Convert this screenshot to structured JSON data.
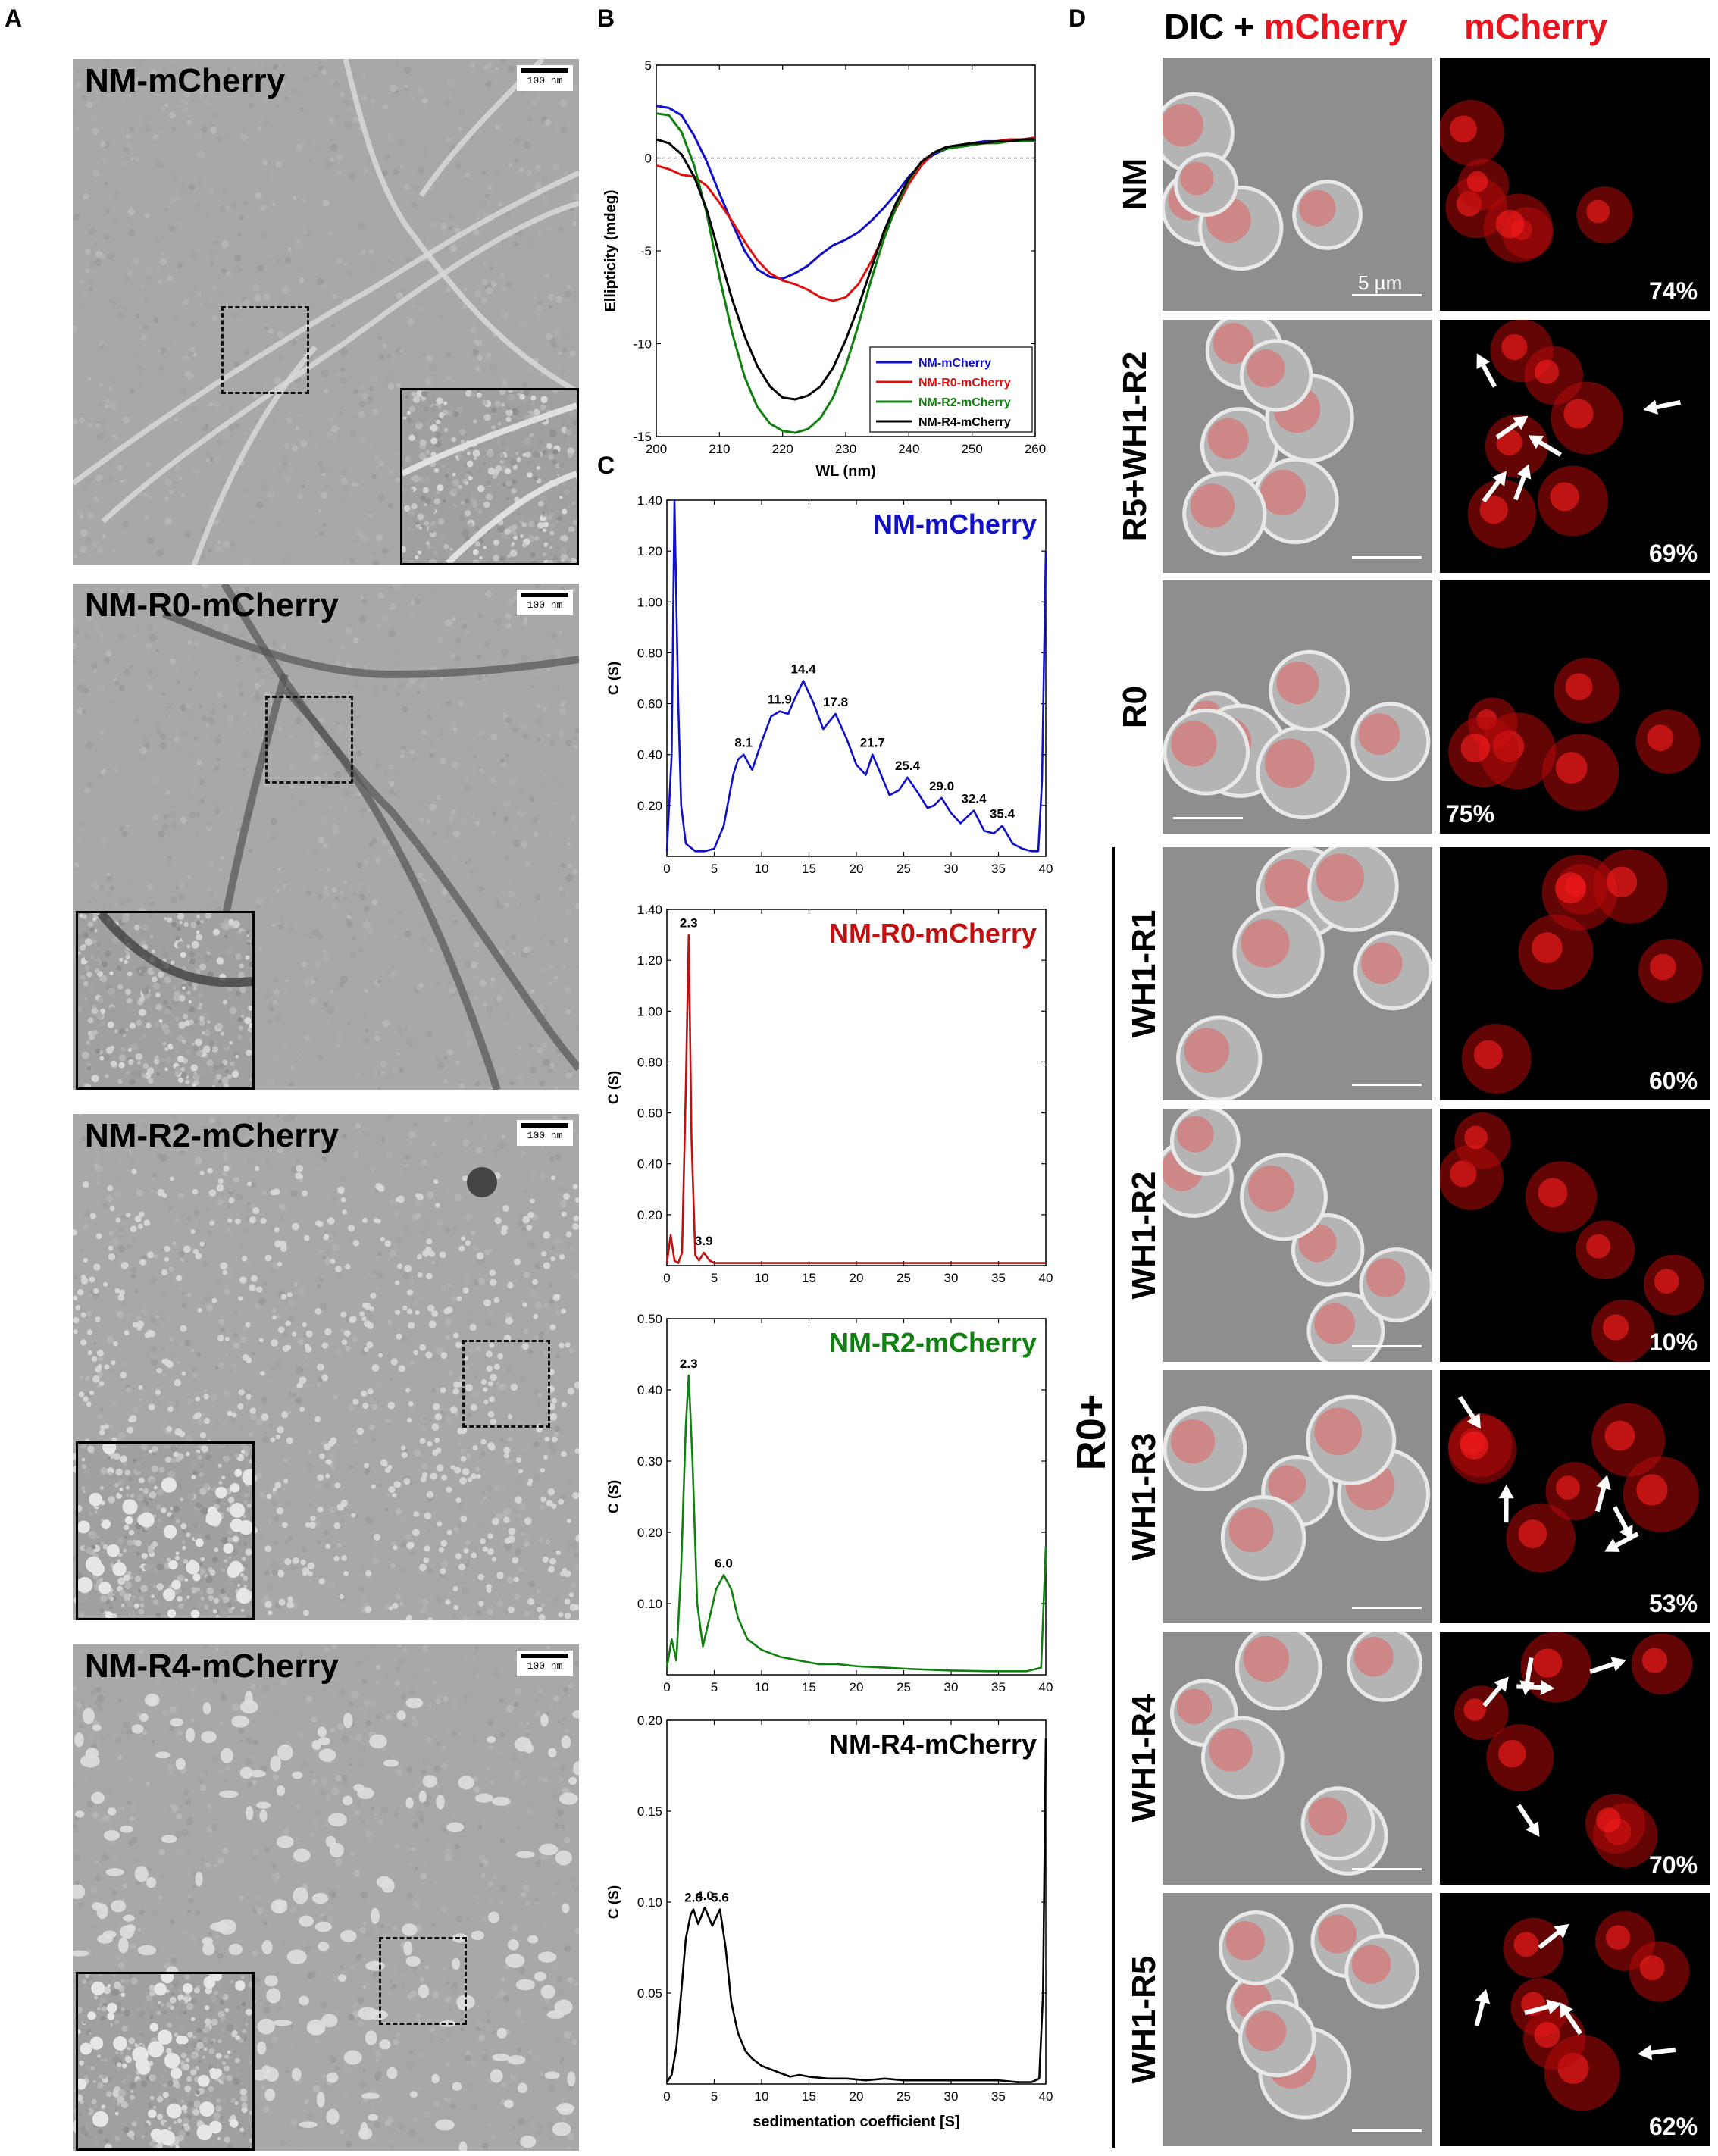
{
  "panels": {
    "a": {
      "letter": "A"
    },
    "b": {
      "letter": "B"
    },
    "c": {
      "letter": "C"
    },
    "d": {
      "letter": "D"
    }
  },
  "em": [
    {
      "title": "NM-mCherry",
      "scalebar": "100 nm",
      "style": "fibrils"
    },
    {
      "title": "NM-R0-mCherry",
      "scalebar": "100 nm",
      "style": "bundles"
    },
    {
      "title": "NM-R2-mCherry",
      "scalebar": "100 nm",
      "style": "dots"
    },
    {
      "title": "NM-R4-mCherry",
      "scalebar": "100 nm",
      "style": "blobs"
    }
  ],
  "chart_data": [
    {
      "type": "line",
      "panel": "B",
      "xlabel": "WL (nm)",
      "ylabel": "Ellipticity (mdeg)",
      "xlim": [
        200,
        260
      ],
      "ylim": [
        -15,
        5
      ],
      "xticks": [
        200,
        210,
        220,
        230,
        240,
        250,
        260
      ],
      "yticks": [
        5,
        0,
        -5,
        -10,
        -15
      ],
      "legend_position": "bottom-right",
      "series": [
        {
          "name": "NM-mCherry",
          "color": "#1010c8",
          "x": [
            200,
            202,
            204,
            206,
            208,
            210,
            212,
            214,
            216,
            218,
            220,
            222,
            224,
            226,
            228,
            230,
            232,
            234,
            236,
            238,
            240,
            242,
            244,
            246,
            248,
            250,
            252,
            254,
            256,
            258,
            260
          ],
          "y": [
            2.8,
            2.7,
            2.3,
            1.2,
            -0.2,
            -1.9,
            -3.5,
            -5.0,
            -6.0,
            -6.4,
            -6.5,
            -6.2,
            -5.8,
            -5.2,
            -4.7,
            -4.4,
            -4.0,
            -3.4,
            -2.7,
            -1.9,
            -1.0,
            -0.3,
            0.2,
            0.5,
            0.7,
            0.8,
            0.9,
            0.9,
            1.0,
            1.0,
            1.0
          ]
        },
        {
          "name": "NM-R0-mCherry",
          "color": "#e01010",
          "x": [
            200,
            202,
            204,
            206,
            208,
            210,
            212,
            214,
            216,
            218,
            220,
            222,
            224,
            226,
            228,
            230,
            232,
            234,
            236,
            238,
            240,
            242,
            244,
            246,
            248,
            250,
            252,
            254,
            256,
            258,
            260
          ],
          "y": [
            -0.4,
            -0.6,
            -0.9,
            -1.0,
            -1.5,
            -2.4,
            -3.4,
            -4.5,
            -5.5,
            -6.2,
            -6.6,
            -6.8,
            -7.1,
            -7.5,
            -7.7,
            -7.5,
            -6.8,
            -5.6,
            -4.2,
            -2.7,
            -1.4,
            -0.4,
            0.3,
            0.6,
            0.7,
            0.8,
            0.8,
            0.9,
            1.0,
            1.0,
            1.1
          ]
        },
        {
          "name": "NM-R2-mCherry",
          "color": "#108010",
          "x": [
            200,
            202,
            204,
            206,
            208,
            210,
            212,
            214,
            216,
            218,
            220,
            222,
            224,
            226,
            228,
            230,
            232,
            234,
            236,
            238,
            240,
            242,
            244,
            246,
            248,
            250,
            252,
            254,
            256,
            258,
            260
          ],
          "y": [
            2.4,
            2.3,
            1.4,
            -0.4,
            -3.0,
            -6.4,
            -9.4,
            -11.8,
            -13.4,
            -14.3,
            -14.7,
            -14.8,
            -14.6,
            -14.0,
            -12.9,
            -11.2,
            -9.0,
            -6.6,
            -4.4,
            -2.6,
            -1.2,
            -0.2,
            0.3,
            0.5,
            0.6,
            0.7,
            0.8,
            0.8,
            0.9,
            0.9,
            0.9
          ]
        },
        {
          "name": "NM-R4-mCherry",
          "color": "#000000",
          "x": [
            200,
            202,
            204,
            206,
            208,
            210,
            212,
            214,
            216,
            218,
            220,
            222,
            224,
            226,
            228,
            230,
            232,
            234,
            236,
            238,
            240,
            242,
            244,
            246,
            248,
            250,
            252,
            254,
            256,
            258,
            260
          ],
          "y": [
            1.0,
            0.8,
            0.2,
            -1.0,
            -2.8,
            -5.2,
            -7.6,
            -9.6,
            -11.2,
            -12.3,
            -12.9,
            -13.0,
            -12.8,
            -12.3,
            -11.3,
            -9.8,
            -8.0,
            -6.0,
            -4.0,
            -2.4,
            -1.1,
            -0.2,
            0.3,
            0.6,
            0.7,
            0.8,
            0.8,
            0.9,
            0.9,
            1.0,
            1.0
          ]
        }
      ]
    },
    {
      "type": "line",
      "panel": "C",
      "title": "NM-mCherry",
      "color": "#1010c8",
      "ylabel": "C (S)",
      "xlim": [
        0,
        40
      ],
      "ylim": [
        0,
        1.4
      ],
      "yticks": [
        0.2,
        0.4,
        0.6,
        0.8,
        1.0,
        1.2,
        1.4
      ],
      "ytick_labels": [
        "0.20",
        "0.40",
        "0.60",
        "0.80",
        "1.00",
        "1.20",
        "1.40"
      ],
      "xticks": [
        0,
        5,
        10,
        15,
        20,
        25,
        30,
        35,
        40
      ],
      "peak_labels": [
        {
          "x": 8.1,
          "y": 0.4,
          "text": "8.1"
        },
        {
          "x": 11.9,
          "y": 0.57,
          "text": "11.9"
        },
        {
          "x": 14.4,
          "y": 0.69,
          "text": "14.4"
        },
        {
          "x": 17.8,
          "y": 0.56,
          "text": "17.8"
        },
        {
          "x": 21.7,
          "y": 0.4,
          "text": "21.7"
        },
        {
          "x": 25.4,
          "y": 0.31,
          "text": "25.4"
        },
        {
          "x": 29.0,
          "y": 0.23,
          "text": "29.0"
        },
        {
          "x": 32.4,
          "y": 0.18,
          "text": "32.4"
        },
        {
          "x": 35.4,
          "y": 0.12,
          "text": "35.4"
        }
      ],
      "x": [
        0,
        0.5,
        0.8,
        1.0,
        1.2,
        1.5,
        2,
        3,
        4,
        5,
        6,
        7,
        7.5,
        8.1,
        9,
        10,
        11,
        11.9,
        12.8,
        13.5,
        14.4,
        15.5,
        16.5,
        17.8,
        19,
        20,
        21,
        21.7,
        22.5,
        23.5,
        24.5,
        25.4,
        26.5,
        27.5,
        28.2,
        29.0,
        30,
        31,
        32.4,
        33.5,
        34.5,
        35.4,
        36.5,
        37.5,
        38.5,
        39.2,
        39.6,
        40
      ],
      "y": [
        0.02,
        0.4,
        1.4,
        1.0,
        0.6,
        0.2,
        0.05,
        0.02,
        0.02,
        0.03,
        0.12,
        0.32,
        0.38,
        0.4,
        0.34,
        0.45,
        0.55,
        0.57,
        0.56,
        0.62,
        0.69,
        0.6,
        0.5,
        0.56,
        0.46,
        0.36,
        0.32,
        0.4,
        0.33,
        0.24,
        0.26,
        0.31,
        0.25,
        0.19,
        0.2,
        0.23,
        0.17,
        0.13,
        0.18,
        0.1,
        0.09,
        0.12,
        0.05,
        0.03,
        0.02,
        0.02,
        0.3,
        1.2
      ]
    },
    {
      "type": "line",
      "panel": "C",
      "title": "NM-R0-mCherry",
      "color": "#c01010",
      "ylabel": "C (S)",
      "xlim": [
        0,
        40
      ],
      "ylim": [
        0,
        1.4
      ],
      "yticks": [
        0.2,
        0.4,
        0.6,
        0.8,
        1.0,
        1.2,
        1.4
      ],
      "ytick_labels": [
        "0.20",
        "0.40",
        "0.60",
        "0.80",
        "1.00",
        "1.20",
        "1.40"
      ],
      "xticks": [
        0,
        5,
        10,
        15,
        20,
        25,
        30,
        35,
        40
      ],
      "peak_labels": [
        {
          "x": 2.3,
          "y": 1.3,
          "text": "2.3"
        },
        {
          "x": 3.9,
          "y": 0.05,
          "text": "3.9"
        }
      ],
      "x": [
        0,
        0.4,
        0.8,
        1.2,
        1.6,
        2.0,
        2.3,
        2.6,
        3.0,
        3.4,
        3.9,
        4.5,
        5,
        6,
        8,
        10,
        15,
        20,
        25,
        30,
        35,
        39.5,
        40
      ],
      "y": [
        0.01,
        0.12,
        0.02,
        0.01,
        0.05,
        0.7,
        1.3,
        0.5,
        0.04,
        0.02,
        0.05,
        0.02,
        0.01,
        0.01,
        0.01,
        0.01,
        0.01,
        0.01,
        0.01,
        0.01,
        0.01,
        0.01,
        0.01
      ]
    },
    {
      "type": "line",
      "panel": "C",
      "title": "NM-R2-mCherry",
      "color": "#108010",
      "ylabel": "C (S)",
      "xlim": [
        0,
        40
      ],
      "ylim": [
        0,
        0.5
      ],
      "yticks": [
        0.1,
        0.2,
        0.3,
        0.4,
        0.5
      ],
      "ytick_labels": [
        "0.10",
        "0.20",
        "0.30",
        "0.40",
        "0.50"
      ],
      "xticks": [
        0,
        5,
        10,
        15,
        20,
        25,
        30,
        35,
        40
      ],
      "peak_labels": [
        {
          "x": 2.3,
          "y": 0.42,
          "text": "2.3"
        },
        {
          "x": 6.0,
          "y": 0.14,
          "text": "6.0"
        }
      ],
      "x": [
        0,
        0.5,
        1.0,
        1.5,
        2.0,
        2.3,
        2.7,
        3.2,
        3.8,
        4.5,
        5.2,
        6.0,
        6.8,
        7.5,
        8.5,
        10,
        12,
        14,
        16,
        18,
        20,
        23,
        26,
        30,
        34,
        38,
        39.5,
        40
      ],
      "y": [
        0.01,
        0.05,
        0.02,
        0.15,
        0.35,
        0.42,
        0.3,
        0.1,
        0.04,
        0.08,
        0.12,
        0.14,
        0.12,
        0.08,
        0.05,
        0.035,
        0.025,
        0.02,
        0.015,
        0.015,
        0.012,
        0.01,
        0.008,
        0.006,
        0.005,
        0.005,
        0.01,
        0.18
      ]
    },
    {
      "type": "line",
      "panel": "C",
      "title": "NM-R4-mCherry",
      "color": "#000000",
      "ylabel": "C (S)",
      "xlabel": "sedimentation coefficient",
      "xlabel_unit": "[S]",
      "xlim": [
        0,
        40
      ],
      "ylim": [
        0,
        0.2
      ],
      "yticks": [
        0.05,
        0.1,
        0.15,
        0.2
      ],
      "ytick_labels": [
        "0.05",
        "0.10",
        "0.15",
        "0.20"
      ],
      "xticks": [
        0,
        5,
        10,
        15,
        20,
        25,
        30,
        35,
        40
      ],
      "xtick_labels": [
        "0",
        "5",
        "10",
        "15",
        "20",
        "25",
        "30",
        "35",
        "40"
      ],
      "peak_labels": [
        {
          "x": 2.8,
          "y": 0.096,
          "text": "2.8"
        },
        {
          "x": 4.0,
          "y": 0.097,
          "text": "4.0"
        },
        {
          "x": 5.6,
          "y": 0.096,
          "text": "5.6"
        }
      ],
      "x": [
        0,
        0.5,
        1.0,
        1.5,
        2.0,
        2.5,
        2.8,
        3.3,
        4.0,
        4.8,
        5.6,
        6.2,
        6.8,
        7.5,
        8.3,
        9,
        10,
        11,
        12,
        13,
        14,
        15,
        17,
        19,
        21,
        23,
        25,
        27,
        29,
        31,
        33,
        35,
        37,
        38.5,
        39.3,
        39.7,
        40
      ],
      "y": [
        0.001,
        0.005,
        0.02,
        0.05,
        0.08,
        0.093,
        0.096,
        0.088,
        0.097,
        0.087,
        0.096,
        0.075,
        0.045,
        0.028,
        0.018,
        0.014,
        0.01,
        0.008,
        0.006,
        0.004,
        0.005,
        0.004,
        0.003,
        0.003,
        0.002,
        0.003,
        0.002,
        0.002,
        0.002,
        0.002,
        0.002,
        0.002,
        0.001,
        0.001,
        0.003,
        0.05,
        0.19
      ]
    }
  ],
  "panel_d": {
    "header_left_black": "DIC + ",
    "header_left_red": "mCherry",
    "header_right": "mCherry",
    "scale_label": "5 µm",
    "group_label": "R0+",
    "rows": [
      {
        "label": "NM",
        "percent": "74%",
        "pct_side": "right",
        "arrows": 0
      },
      {
        "label": "R5+WH1-R2",
        "percent": "69%",
        "pct_side": "right",
        "arrows": 6
      },
      {
        "label": "R0",
        "percent": "75%",
        "pct_side": "left",
        "arrows": 0
      },
      {
        "label": "WH1-R1",
        "percent": "60%",
        "pct_side": "right",
        "arrows": 0
      },
      {
        "label": "WH1-R2",
        "percent": "10%",
        "pct_side": "right",
        "arrows": 0
      },
      {
        "label": "WH1-R3",
        "percent": "53%",
        "pct_side": "right",
        "arrows": 5
      },
      {
        "label": "WH1-R4",
        "percent": "70%",
        "pct_side": "right",
        "arrows": 5
      },
      {
        "label": "WH1-R5",
        "percent": "62%",
        "pct_side": "right",
        "arrows": 5
      }
    ]
  }
}
